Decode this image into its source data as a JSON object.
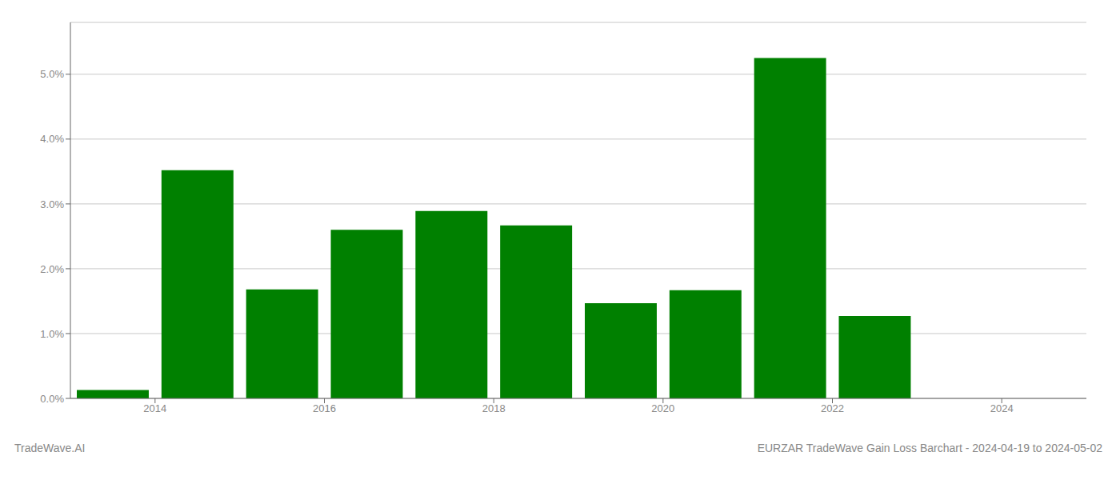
{
  "chart_data": {
    "type": "bar",
    "x": [
      2013.5,
      2014.5,
      2015.5,
      2016.5,
      2017.5,
      2018.5,
      2019.5,
      2020.5,
      2021.5,
      2022.5
    ],
    "values": [
      0.0013,
      0.0352,
      0.0168,
      0.026,
      0.0289,
      0.0267,
      0.0147,
      0.0167,
      0.0525,
      0.0127
    ],
    "color": "#008000",
    "xlim": [
      2013,
      2025
    ],
    "xticks": [
      2014,
      2016,
      2018,
      2020,
      2022,
      2024
    ],
    "ylim": [
      0,
      0.058
    ],
    "yticks": [
      {
        "value": 0.0,
        "label": "0.0%"
      },
      {
        "value": 0.01,
        "label": "1.0%"
      },
      {
        "value": 0.02,
        "label": "2.0%"
      },
      {
        "value": 0.03,
        "label": "3.0%"
      },
      {
        "value": 0.04,
        "label": "4.0%"
      },
      {
        "value": 0.05,
        "label": "5.0%"
      }
    ],
    "grid": true,
    "annotations": [
      "TradeWave.AI",
      "EURZAR TradeWave Gain Loss Barchart - 2024-04-19 to 2024-05-02"
    ]
  }
}
